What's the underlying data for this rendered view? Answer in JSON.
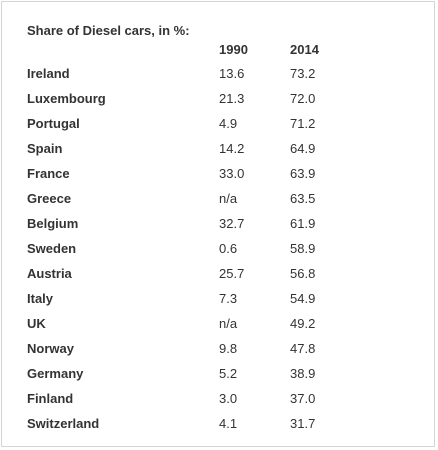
{
  "title": "Share of Diesel cars, in %:",
  "columns": [
    "1990",
    "2014"
  ],
  "rows": [
    {
      "country": "Ireland",
      "v1990": "13.6",
      "v2014": "73.2"
    },
    {
      "country": "Luxembourg",
      "v1990": "21.3",
      "v2014": "72.0"
    },
    {
      "country": "Portugal",
      "v1990": "4.9",
      "v2014": "71.2"
    },
    {
      "country": "Spain",
      "v1990": "14.2",
      "v2014": "64.9"
    },
    {
      "country": "France",
      "v1990": "33.0",
      "v2014": "63.9"
    },
    {
      "country": "Greece",
      "v1990": "n/a",
      "v2014": "63.5"
    },
    {
      "country": "Belgium",
      "v1990": "32.7",
      "v2014": "61.9"
    },
    {
      "country": "Sweden",
      "v1990": "0.6",
      "v2014": "58.9"
    },
    {
      "country": "Austria",
      "v1990": "25.7",
      "v2014": "56.8"
    },
    {
      "country": "Italy",
      "v1990": "7.3",
      "v2014": "54.9"
    },
    {
      "country": "UK",
      "v1990": "n/a",
      "v2014": "49.2"
    },
    {
      "country": "Norway",
      "v1990": "9.8",
      "v2014": "47.8"
    },
    {
      "country": "Germany",
      "v1990": "5.2",
      "v2014": "38.9"
    },
    {
      "country": "Finland",
      "v1990": "3.0",
      "v2014": "37.0"
    },
    {
      "country": "Switzerland",
      "v1990": "4.1",
      "v2014": "31.7"
    }
  ]
}
